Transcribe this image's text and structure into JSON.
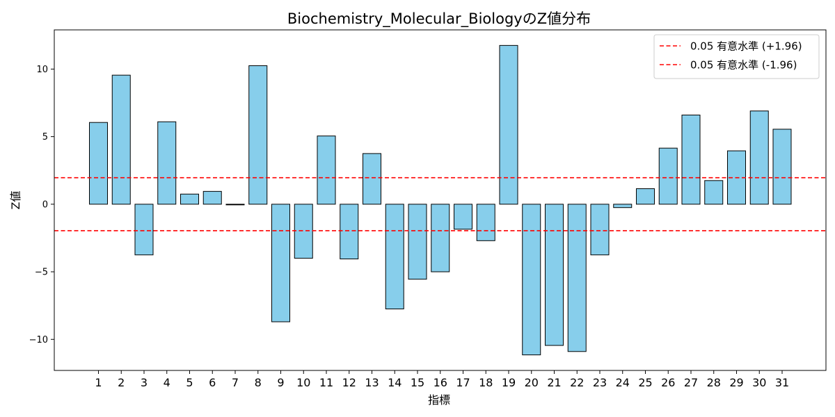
{
  "chart_data": {
    "type": "bar",
    "title": "Biochemistry_Molecular_BiologyのZ値分布",
    "xlabel": "指標",
    "ylabel": "Z値",
    "categories": [
      "1",
      "2",
      "3",
      "4",
      "5",
      "6",
      "7",
      "8",
      "9",
      "10",
      "11",
      "12",
      "13",
      "14",
      "15",
      "16",
      "17",
      "18",
      "19",
      "20",
      "21",
      "22",
      "23",
      "24",
      "25",
      "26",
      "27",
      "28",
      "29",
      "30",
      "31"
    ],
    "values": [
      6.05,
      9.55,
      -3.75,
      6.1,
      0.75,
      0.95,
      -0.05,
      10.25,
      -8.7,
      -4.0,
      5.05,
      -4.05,
      3.75,
      -7.75,
      -5.55,
      -5.0,
      -1.85,
      -2.7,
      11.75,
      -11.15,
      -10.45,
      -10.9,
      -3.75,
      -0.25,
      1.15,
      4.15,
      6.6,
      1.75,
      3.95,
      6.9,
      5.55
    ],
    "ylim": [
      -12.3,
      12.9
    ],
    "yticks": [
      -10,
      -5,
      0,
      5,
      10
    ],
    "yticklabels": [
      "−10",
      "−5",
      "0",
      "5",
      "10"
    ],
    "bar_color": "#87ceeb",
    "bar_edge_color": "#000000",
    "reference_lines": [
      {
        "value": 1.96,
        "label": "0.05 有意水準 (+1.96)",
        "color": "#ff0000",
        "style": "dashed"
      },
      {
        "value": -1.96,
        "label": "0.05 有意水準 (-1.96)",
        "color": "#ff0000",
        "style": "dashed"
      }
    ],
    "grid": false,
    "legend_position": "top-right"
  }
}
